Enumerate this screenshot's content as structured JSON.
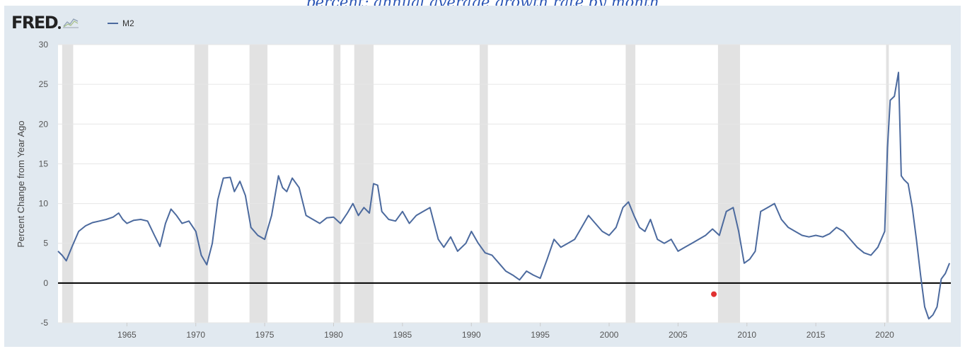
{
  "caption": "percent; annual average growth rate by month",
  "logo": {
    "text": "FRED"
  },
  "legend": {
    "label": "M2",
    "color": "#4c6a9e"
  },
  "chart_data": {
    "type": "line",
    "title": "",
    "xlabel": "",
    "ylabel": "Percent Change from Year Ago",
    "xlim": [
      1960.0,
      2024.8
    ],
    "ylim": [
      -5,
      30
    ],
    "y_ticks": [
      -5,
      0,
      5,
      10,
      15,
      20,
      25,
      30
    ],
    "x_ticks": [
      1965,
      1970,
      1975,
      1980,
      1985,
      1990,
      1995,
      2000,
      2005,
      2010,
      2015,
      2020
    ],
    "recessions": [
      [
        1960.3,
        1961.1
      ],
      [
        1969.9,
        1970.9
      ],
      [
        1973.9,
        1975.2
      ],
      [
        1980.0,
        1980.5
      ],
      [
        1981.5,
        1982.9
      ],
      [
        1990.6,
        1991.2
      ],
      [
        2001.2,
        2001.9
      ],
      [
        2007.9,
        2009.5
      ],
      [
        2020.1,
        2020.3
      ]
    ],
    "zero_line": 0,
    "marker": {
      "x": 2007.6,
      "y": -1.4,
      "color": "#e03131"
    },
    "series": [
      {
        "name": "M2",
        "color": "#4c6a9e",
        "x": [
          1960.0,
          1960.3,
          1960.6,
          1961.0,
          1961.5,
          1962.0,
          1962.5,
          1963.0,
          1963.5,
          1964.0,
          1964.4,
          1964.7,
          1965.0,
          1965.5,
          1966.0,
          1966.5,
          1967.0,
          1967.4,
          1967.8,
          1968.2,
          1968.6,
          1969.0,
          1969.5,
          1970.0,
          1970.4,
          1970.8,
          1971.2,
          1971.6,
          1972.0,
          1972.5,
          1972.8,
          1973.2,
          1973.6,
          1974.0,
          1974.5,
          1975.0,
          1975.5,
          1976.0,
          1976.3,
          1976.6,
          1977.0,
          1977.5,
          1978.0,
          1978.5,
          1979.0,
          1979.5,
          1980.0,
          1980.5,
          1981.0,
          1981.4,
          1981.8,
          1982.2,
          1982.6,
          1982.9,
          1983.2,
          1983.5,
          1984.0,
          1984.5,
          1985.0,
          1985.5,
          1986.0,
          1986.5,
          1987.0,
          1987.6,
          1988.0,
          1988.5,
          1989.0,
          1989.6,
          1990.0,
          1990.5,
          1991.0,
          1991.5,
          1992.0,
          1992.5,
          1993.0,
          1993.5,
          1994.0,
          1994.5,
          1995.0,
          1995.5,
          1996.0,
          1996.5,
          1997.0,
          1997.5,
          1998.0,
          1998.5,
          1999.0,
          1999.5,
          2000.0,
          2000.5,
          2001.0,
          2001.4,
          2001.8,
          2002.2,
          2002.6,
          2003.0,
          2003.5,
          2004.0,
          2004.5,
          2005.0,
          2005.5,
          2006.0,
          2006.5,
          2007.0,
          2007.5,
          2008.0,
          2008.5,
          2009.0,
          2009.4,
          2009.8,
          2010.2,
          2010.6,
          2011.0,
          2011.5,
          2012.0,
          2012.5,
          2013.0,
          2013.5,
          2014.0,
          2014.5,
          2015.0,
          2015.5,
          2016.0,
          2016.5,
          2017.0,
          2017.5,
          2018.0,
          2018.5,
          2019.0,
          2019.5,
          2020.0,
          2020.2,
          2020.4,
          2020.7,
          2021.0,
          2021.2,
          2021.4,
          2021.7,
          2022.0,
          2022.3,
          2022.6,
          2022.9,
          2023.2,
          2023.5,
          2023.8,
          2024.1,
          2024.4,
          2024.7
        ],
        "values": [
          4.0,
          3.5,
          2.8,
          4.5,
          6.5,
          7.2,
          7.6,
          7.8,
          8.0,
          8.3,
          8.8,
          8.0,
          7.5,
          7.9,
          8.0,
          7.8,
          6.0,
          4.6,
          7.5,
          9.3,
          8.5,
          7.5,
          7.8,
          6.5,
          3.5,
          2.3,
          5.0,
          10.5,
          13.2,
          13.3,
          11.5,
          12.8,
          11.0,
          7.0,
          6.0,
          5.5,
          8.5,
          13.5,
          12.0,
          11.5,
          13.2,
          12.0,
          8.5,
          8.0,
          7.5,
          8.2,
          8.3,
          7.5,
          8.8,
          10.0,
          8.5,
          9.5,
          8.8,
          12.5,
          12.3,
          9.0,
          8.0,
          7.8,
          9.0,
          7.5,
          8.5,
          9.0,
          9.5,
          5.5,
          4.5,
          5.8,
          4.0,
          5.0,
          6.5,
          5.0,
          3.8,
          3.5,
          2.5,
          1.5,
          1.0,
          0.4,
          1.5,
          1.0,
          0.6,
          3.0,
          5.5,
          4.5,
          5.0,
          5.5,
          7.0,
          8.5,
          7.5,
          6.5,
          6.0,
          7.0,
          9.5,
          10.2,
          8.5,
          7.0,
          6.5,
          8.0,
          5.5,
          5.0,
          5.5,
          4.0,
          4.5,
          5.0,
          5.5,
          6.0,
          6.8,
          6.0,
          9.0,
          9.5,
          6.5,
          2.5,
          3.0,
          4.0,
          9.0,
          9.5,
          10.0,
          8.0,
          7.0,
          6.5,
          6.0,
          5.8,
          6.0,
          5.8,
          6.2,
          7.0,
          6.5,
          5.5,
          4.5,
          3.8,
          3.5,
          4.5,
          6.5,
          17.0,
          23.0,
          23.5,
          26.5,
          13.5,
          13.0,
          12.5,
          9.5,
          5.5,
          1.0,
          -3.0,
          -4.5,
          -4.0,
          -3.0,
          0.5,
          1.2,
          2.5
        ]
      }
    ]
  }
}
